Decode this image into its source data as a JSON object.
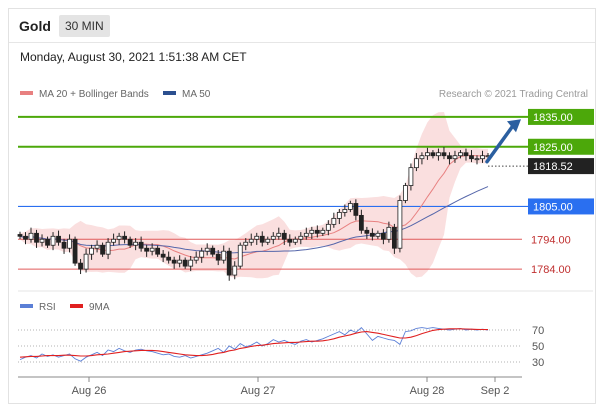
{
  "header": {
    "symbol": "Gold",
    "timeframe": "30 MIN"
  },
  "datetime": "Monday, August 30, 2021 1:51:38 AM CET",
  "credit": "Research © 2021 Trading Central",
  "colors": {
    "green_line": "#4ca80a",
    "blue_line": "#2a6ff0",
    "red_line": "#e05a5a",
    "ma20": "#e88080",
    "ma50": "#5566aa",
    "band_fill": "#f8d4d4",
    "arrow": "#2b5fa0",
    "rsi": "#5b7fd6",
    "rsi_ma": "#e02020"
  },
  "chart_data": [
    {
      "type": "candlestick",
      "legend": [
        {
          "name": "MA 20 + Bollinger Bands",
          "color": "#e88080"
        },
        {
          "name": "MA 50",
          "color": "#2b4f8f"
        }
      ],
      "x_ticks": [
        "Aug 26",
        "Aug 27",
        "Aug 28",
        "Sep 2"
      ],
      "ylim": [
        1777,
        1840
      ],
      "levels": [
        {
          "value": 1835.0,
          "label": "1835.00",
          "style": "resistance-box"
        },
        {
          "value": 1825.0,
          "label": "1825.00",
          "style": "resistance-box"
        },
        {
          "value": 1818.52,
          "label": "1818.52",
          "style": "current-price"
        },
        {
          "value": 1805.0,
          "label": "1805.00",
          "style": "pivot-box"
        },
        {
          "value": 1794.0,
          "label": "1794.00",
          "style": "support-text"
        },
        {
          "value": 1784.0,
          "label": "1784.00",
          "style": "support-text"
        }
      ],
      "close_series": [
        1795,
        1794,
        1796,
        1793,
        1794,
        1792,
        1795,
        1793,
        1791,
        1794,
        1786,
        1784,
        1789,
        1791,
        1792,
        1789,
        1793,
        1794,
        1795,
        1794,
        1792,
        1793,
        1791,
        1790,
        1791,
        1789,
        1788,
        1787,
        1786,
        1787,
        1785,
        1787,
        1788,
        1790,
        1791,
        1789,
        1787,
        1790,
        1782,
        1785,
        1792,
        1793,
        1794,
        1795,
        1793,
        1794,
        1795,
        1796,
        1794,
        1793,
        1794,
        1795,
        1796,
        1797,
        1796,
        1797,
        1799,
        1801,
        1803,
        1804,
        1806,
        1802,
        1797,
        1796,
        1795,
        1796,
        1794,
        1798,
        1791,
        1807,
        1812,
        1818,
        1821,
        1822,
        1823,
        1822,
        1823,
        1822,
        1821,
        1822,
        1823,
        1822,
        1821,
        1821,
        1822,
        1822
      ]
    },
    {
      "type": "line",
      "legend": [
        {
          "name": "RSI",
          "color": "#5b7fd6"
        },
        {
          "name": "9MA",
          "color": "#e02020"
        }
      ],
      "ylim": [
        20,
        85
      ],
      "y_ticks": [
        70,
        50,
        30
      ],
      "rsi_series": [
        33,
        36,
        38,
        35,
        40,
        37,
        39,
        36,
        38,
        40,
        34,
        31,
        36,
        39,
        42,
        38,
        45,
        43,
        47,
        44,
        42,
        45,
        46,
        44,
        43,
        41,
        39,
        40,
        37,
        36,
        38,
        35,
        37,
        39,
        41,
        44,
        47,
        42,
        50,
        46,
        53,
        49,
        51,
        55,
        50,
        53,
        58,
        55,
        57,
        54,
        52,
        56,
        58,
        55,
        57,
        59,
        62,
        65,
        68,
        64,
        70,
        67,
        73,
        65,
        57,
        62,
        60,
        58,
        57,
        52,
        68,
        69,
        72,
        73,
        72,
        73,
        72,
        71,
        70,
        71,
        72,
        70,
        71,
        70,
        71,
        70
      ],
      "rsi_ma_series": [
        36,
        36.5,
        37,
        37,
        37.5,
        38,
        38,
        38,
        38.5,
        38.5,
        38,
        37.5,
        37.5,
        38,
        39,
        39.5,
        40,
        41,
        42,
        43,
        43.5,
        44,
        44.5,
        44.5,
        44.5,
        44,
        43,
        42,
        41,
        40,
        39,
        38.5,
        38,
        38,
        38.5,
        39.5,
        41,
        42,
        44,
        45,
        47,
        48,
        49.5,
        50.5,
        51,
        52,
        53,
        53.5,
        54,
        54.5,
        54.5,
        55,
        55.5,
        56,
        56,
        56.5,
        57.5,
        59,
        61,
        62.5,
        64,
        66,
        67.5,
        68,
        67,
        66,
        64.5,
        63,
        61.5,
        60,
        60,
        61,
        63,
        65.5,
        67.5,
        69.5,
        70.5,
        71,
        71.5,
        71.5,
        71.5,
        71.2,
        71,
        70.8,
        70.6,
        70.5
      ]
    }
  ]
}
